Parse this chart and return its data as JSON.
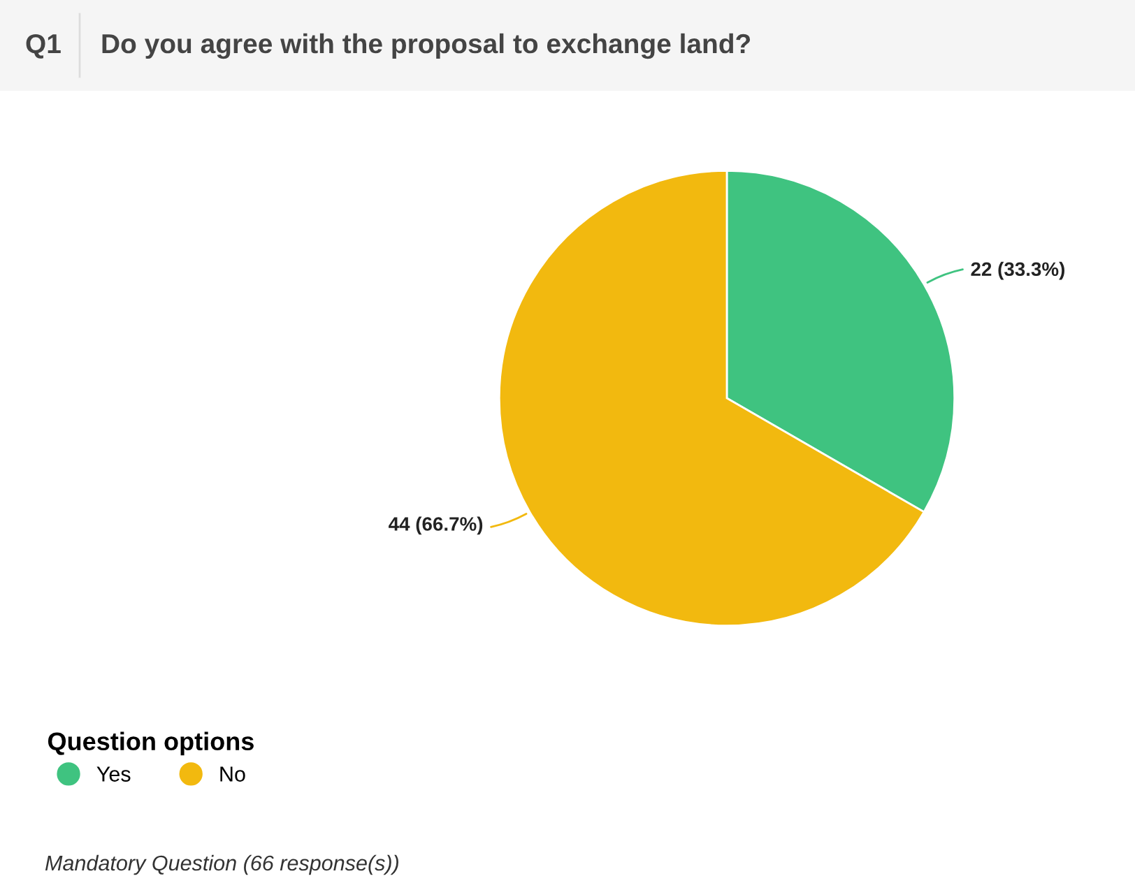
{
  "chart_data": {
    "type": "pie",
    "title": "Q1",
    "subtitle": "Do you agree with the proposal to exchange land?",
    "categories": [
      "Yes",
      "No"
    ],
    "values": [
      22,
      44
    ],
    "colors": [
      "#3fc380",
      "#f2b90f"
    ],
    "value_labels": [
      "22 (33.3%)",
      "44 (66.7%)"
    ],
    "legend": "bottom left",
    "legend_title": "Question options",
    "annotations": [
      "Mandatory Question (66 response(s))"
    ]
  }
}
